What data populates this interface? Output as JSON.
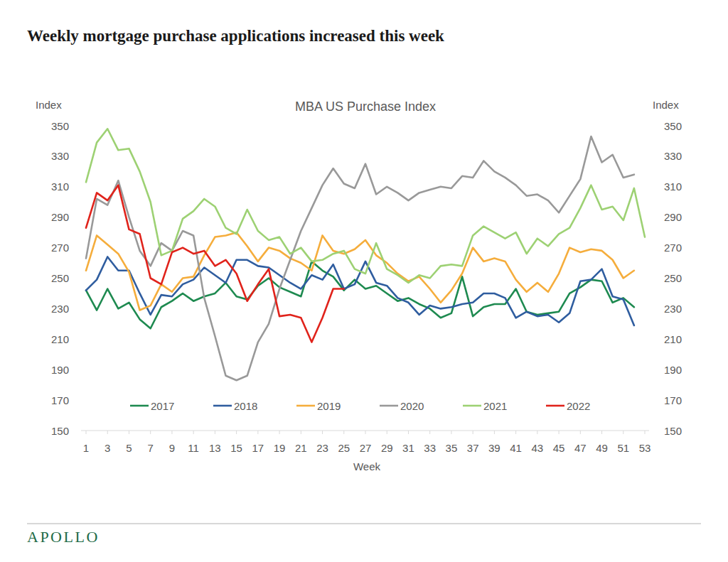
{
  "chart_data": {
    "type": "line",
    "title": "Weekly mortgage purchase applications increased this week",
    "subtitle": "MBA US Purchase Index",
    "x_label": "Week",
    "y_label": "Index",
    "y2_label": "Index",
    "footer": "APOLLO",
    "x": [
      1,
      2,
      3,
      4,
      5,
      6,
      7,
      8,
      9,
      10,
      11,
      12,
      13,
      14,
      15,
      16,
      17,
      18,
      19,
      20,
      21,
      22,
      23,
      24,
      25,
      26,
      27,
      28,
      29,
      30,
      31,
      32,
      33,
      34,
      35,
      36,
      37,
      38,
      39,
      40,
      41,
      42,
      43,
      44,
      45,
      46,
      47,
      48,
      49,
      50,
      51,
      52,
      53
    ],
    "xlim": [
      1,
      53
    ],
    "xticks": [
      1,
      3,
      5,
      7,
      9,
      11,
      13,
      15,
      17,
      19,
      21,
      23,
      25,
      27,
      29,
      31,
      33,
      35,
      37,
      39,
      41,
      43,
      45,
      47,
      49,
      51,
      53
    ],
    "ylim": [
      150,
      350
    ],
    "yticks": [
      150,
      170,
      190,
      210,
      230,
      250,
      270,
      290,
      310,
      330,
      350
    ],
    "y2lim": [
      150,
      350
    ],
    "y2ticks": [
      150,
      170,
      190,
      210,
      230,
      250,
      270,
      290,
      310,
      330,
      350
    ],
    "grid": false,
    "legend": "bottom",
    "series": [
      {
        "name": "2017",
        "color": "#1e8a50",
        "values": [
          242,
          229,
          243,
          230,
          234,
          223,
          217,
          231,
          235,
          240,
          235,
          238,
          240,
          247,
          238,
          236,
          245,
          250,
          244,
          241,
          238,
          261,
          255,
          251,
          242,
          249,
          243,
          245,
          240,
          235,
          237,
          233,
          230,
          224,
          227,
          251,
          225,
          231,
          233,
          233,
          243,
          228,
          226,
          227,
          228,
          240,
          244,
          249,
          248,
          234,
          237,
          231,
          null
        ]
      },
      {
        "name": "2018",
        "color": "#2f5d9f",
        "values": [
          242,
          249,
          264,
          255,
          255,
          240,
          226,
          239,
          238,
          246,
          249,
          257,
          252,
          247,
          262,
          262,
          258,
          257,
          252,
          247,
          243,
          252,
          249,
          259,
          243,
          246,
          261,
          247,
          245,
          237,
          234,
          226,
          232,
          230,
          231,
          233,
          234,
          240,
          240,
          237,
          224,
          228,
          225,
          226,
          221,
          227,
          248,
          249,
          256,
          238,
          236,
          219,
          null
        ]
      },
      {
        "name": "2019",
        "color": "#f5ad3c",
        "values": [
          255,
          278,
          272,
          266,
          254,
          229,
          232,
          246,
          241,
          250,
          251,
          265,
          277,
          278,
          280,
          271,
          261,
          270,
          268,
          263,
          260,
          255,
          278,
          268,
          266,
          269,
          275,
          265,
          260,
          253,
          248,
          251,
          243,
          234,
          242,
          253,
          270,
          261,
          263,
          261,
          249,
          241,
          247,
          241,
          253,
          270,
          267,
          269,
          268,
          262,
          250,
          255,
          null
        ]
      },
      {
        "name": "2020",
        "color": "#999999",
        "values": [
          263,
          302,
          298,
          314,
          290,
          268,
          258,
          273,
          268,
          281,
          278,
          237,
          212,
          186,
          183,
          186,
          208,
          220,
          243,
          262,
          281,
          296,
          311,
          322,
          312,
          309,
          325,
          305,
          310,
          306,
          301,
          306,
          308,
          310,
          309,
          317,
          316,
          327,
          320,
          316,
          311,
          304,
          305,
          301,
          293,
          304,
          315,
          343,
          326,
          331,
          316,
          318,
          null
        ]
      },
      {
        "name": "2021",
        "color": "#9dd173",
        "values": [
          313,
          339,
          348,
          334,
          335,
          320,
          300,
          265,
          268,
          289,
          294,
          302,
          297,
          283,
          279,
          295,
          281,
          275,
          277,
          266,
          270,
          261,
          262,
          266,
          268,
          256,
          253,
          273,
          256,
          252,
          247,
          252,
          250,
          258,
          259,
          258,
          278,
          284,
          280,
          276,
          280,
          266,
          276,
          271,
          279,
          283,
          296,
          311,
          295,
          297,
          288,
          309,
          277
        ]
      },
      {
        "name": "2022",
        "color": "#e0231b",
        "values": [
          283,
          306,
          301,
          311,
          282,
          279,
          250,
          246,
          267,
          270,
          266,
          268,
          258,
          262,
          253,
          235,
          246,
          256,
          225,
          226,
          224,
          208,
          224,
          243,
          243,
          null,
          null,
          null,
          null,
          null,
          null,
          null,
          null,
          null,
          null,
          null,
          null,
          null,
          null,
          null,
          null,
          null,
          null,
          null,
          null,
          null,
          null,
          null,
          null,
          null,
          null,
          null,
          null
        ]
      }
    ]
  }
}
